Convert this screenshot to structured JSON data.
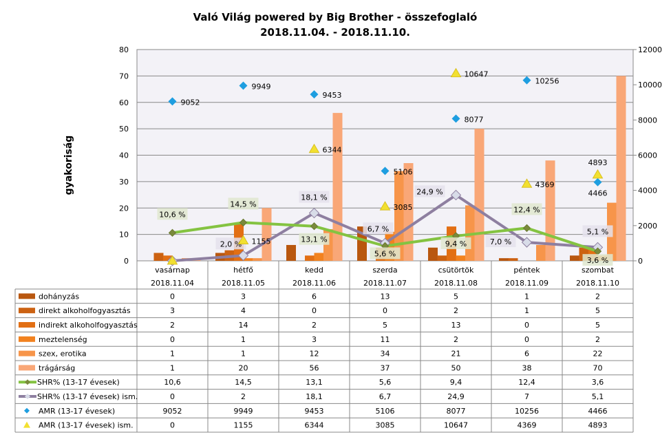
{
  "chart_data": {
    "type": "bar",
    "title": "Való Világ powered by Big Brother - összefoglaló",
    "subtitle": "2018.11.04. - 2018.11.10.",
    "ylabel": "gyakoriság",
    "ylim": [
      0,
      80
    ],
    "yticks": [
      0,
      10,
      20,
      30,
      40,
      50,
      60,
      70,
      80
    ],
    "y2lim": [
      0,
      12000
    ],
    "y2ticks": [
      0,
      2000,
      4000,
      6000,
      8000,
      10000,
      12000
    ],
    "grid": true,
    "legend": "data-table",
    "categories": [
      "vasárnap",
      "hétfő",
      "kedd",
      "szerda",
      "csütörtök",
      "péntek",
      "szombat"
    ],
    "dates": [
      "2018.11.04",
      "2018.11.05",
      "2018.11.06",
      "2018.11.07",
      "2018.11.08",
      "2018.11.09",
      "2018.11.10"
    ],
    "series": [
      {
        "name": "dohányzás",
        "type": "bar",
        "axis": "left",
        "color": "#b9570f",
        "values": [
          0,
          3,
          6,
          13,
          5,
          1,
          2
        ]
      },
      {
        "name": "direkt alkoholfogyasztás",
        "type": "bar",
        "axis": "left",
        "color": "#cc6212",
        "values": [
          3,
          4,
          0,
          0,
          2,
          1,
          5
        ]
      },
      {
        "name": "indirekt alkoholfogyasztás",
        "type": "bar",
        "axis": "left",
        "color": "#e26f14",
        "values": [
          2,
          14,
          2,
          5,
          13,
          0,
          5
        ]
      },
      {
        "name": "meztelenség",
        "type": "bar",
        "axis": "left",
        "color": "#f2821f",
        "values": [
          0,
          1,
          3,
          11,
          2,
          0,
          2
        ]
      },
      {
        "name": "szex, erotika",
        "type": "bar",
        "axis": "left",
        "color": "#f7954a",
        "values": [
          1,
          1,
          12,
          34,
          21,
          6,
          22
        ]
      },
      {
        "name": "trágárság",
        "type": "bar",
        "axis": "left",
        "color": "#f9a777",
        "values": [
          1,
          20,
          56,
          37,
          50,
          38,
          70
        ]
      },
      {
        "name": "SHR% (13-17 évesek)",
        "type": "line",
        "axis": "left",
        "color": "#84c341",
        "marker_color": "#7a8a3c",
        "values": [
          10.6,
          14.5,
          13.1,
          5.6,
          9.4,
          12.4,
          3.6
        ],
        "table_values": [
          "10,6",
          "14,5",
          "13,1",
          "5,6",
          "9,4",
          "12,4",
          "3,6"
        ],
        "labels": [
          "10,6 %",
          "14,5 %",
          "13,1 %",
          "5,6 %",
          "9,4 %",
          "12,4 %",
          "3,6 %"
        ]
      },
      {
        "name": "SHR% (13-17 évesek) ism.",
        "type": "line",
        "axis": "left",
        "color": "#8e7fa0",
        "marker_color": "#d8dce8",
        "values": [
          0,
          2,
          18.1,
          6.7,
          24.9,
          7,
          5.1
        ],
        "table_values": [
          "0",
          "2",
          "18,1",
          "6,7",
          "24,9",
          "7",
          "5,1"
        ],
        "labels": [
          "",
          "2,0 %",
          "18,1 %",
          "6,7 %",
          "24,9 %",
          "7,0 %",
          "5,1 %"
        ]
      },
      {
        "name": "AMR (13-17 évesek)",
        "type": "scatter",
        "axis": "right",
        "marker": "diamond",
        "color": "#1e9ee0",
        "values": [
          9052,
          9949,
          9453,
          5106,
          8077,
          10256,
          4466
        ],
        "labels": [
          "9052",
          "9949",
          "9453",
          "5106",
          "8077",
          "10256",
          "4466"
        ]
      },
      {
        "name": "AMR (13-17 évesek) ism.",
        "type": "scatter",
        "axis": "right",
        "marker": "triangle",
        "color": "#f2e030",
        "values": [
          0,
          1155,
          6344,
          3085,
          10647,
          4369,
          4893
        ],
        "labels": [
          "",
          "1155",
          "6344",
          "3085",
          "10647",
          "4369",
          "4893"
        ]
      }
    ]
  }
}
